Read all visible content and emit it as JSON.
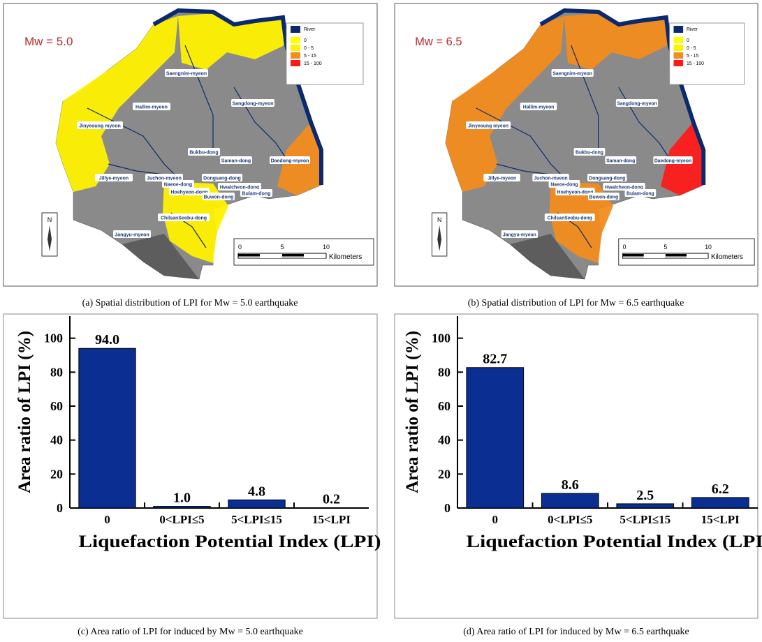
{
  "maps": [
    {
      "title": "Mw = 5.0",
      "legend": [
        {
          "label": "River",
          "color": "#0b2a6e"
        },
        {
          "label": "0",
          "color": "#ffff00"
        },
        {
          "label": "0 - 5",
          "color": "#fff200"
        },
        {
          "label": "5 - 15",
          "color": "#f28c1e"
        },
        {
          "label": "15 - 100",
          "color": "#ff1a1a"
        }
      ],
      "places": [
        "Saengnim-myeon",
        "Hallim-myeon",
        "Sangdong-myeon",
        "Jinyeoung myeon",
        "Bukbu-dong",
        "Saman-dong",
        "Daedong-myeon",
        "Jillye-myeon",
        "Juchon-myeon",
        "Dongsang-dong",
        "Naeoe-dong",
        "Hwalcheon-dong",
        "Hoehyeon-dong",
        "Buwon-dong",
        "Bulam-dong",
        "ChilsanSeobu-dong",
        "Jangyu-myeon"
      ],
      "north": "N",
      "scale": [
        "0",
        "5",
        "10"
      ],
      "scale_unit": "Kilometers",
      "caption": "(a) Spatial distribution of LPI for Mw = 5.0 earthquake"
    },
    {
      "title": "Mw = 6.5",
      "legend": [
        {
          "label": "River",
          "color": "#0b2a6e"
        },
        {
          "label": "0",
          "color": "#ffff00"
        },
        {
          "label": "0 - 5",
          "color": "#fff200"
        },
        {
          "label": "5 - 15",
          "color": "#f28c1e"
        },
        {
          "label": "15 - 100",
          "color": "#ff1a1a"
        }
      ],
      "places": [
        "Saengnim-myeon",
        "Hallim-myeon",
        "Sangdong-myeon",
        "Jinyeoung myeon",
        "Bukbu-dong",
        "Saman-dong",
        "Daedong-myeon",
        "Jillye-myeon",
        "Juchon-myeon",
        "Dongsang-dong",
        "Naeoe-dong",
        "Hwalcheon-dong",
        "Hoehyeon-dong",
        "Buwon-dong",
        "Bulam-dong",
        "ChilsanSeobu-dong",
        "Jangyu-myeon"
      ],
      "north": "N",
      "scale": [
        "0",
        "5",
        "10"
      ],
      "scale_unit": "Kilometers",
      "caption": "(b) Spatial distribution of LPI for Mw = 6.5 earthquake"
    }
  ],
  "chart_data": [
    {
      "type": "bar",
      "categories": [
        "0",
        "0<LPI≤5",
        "5<LPI≤15",
        "15<LPI"
      ],
      "values": [
        94.0,
        1.0,
        4.8,
        0.2
      ],
      "value_labels": [
        "94.0",
        "1.0",
        "4.8",
        "0.2"
      ],
      "color": "#0a2e91",
      "ylim": [
        0,
        113
      ],
      "yticks": [
        0,
        20,
        40,
        60,
        80,
        100
      ],
      "ylabel": "Area ratio of LPI (%)",
      "xlabel": "Liquefaction Potential Index (LPI)",
      "caption": "(c) Area ratio of LPI for induced by Mw = 5.0 earthquake"
    },
    {
      "type": "bar",
      "categories": [
        "0",
        "0<LPI≤5",
        "5<LPI≤15",
        "15<LPI"
      ],
      "values": [
        82.7,
        8.6,
        2.5,
        6.2
      ],
      "value_labels": [
        "82.7",
        "8.6",
        "2.5",
        "6.2"
      ],
      "color": "#0a2e91",
      "ylim": [
        0,
        113
      ],
      "yticks": [
        0,
        20,
        40,
        60,
        80,
        100
      ],
      "ylabel": "Area ratio of LPI (%)",
      "xlabel": "Liquefaction Potential Index (LPI)",
      "caption": "(d) Area ratio of LPI for induced by Mw = 6.5 earthquake"
    }
  ]
}
